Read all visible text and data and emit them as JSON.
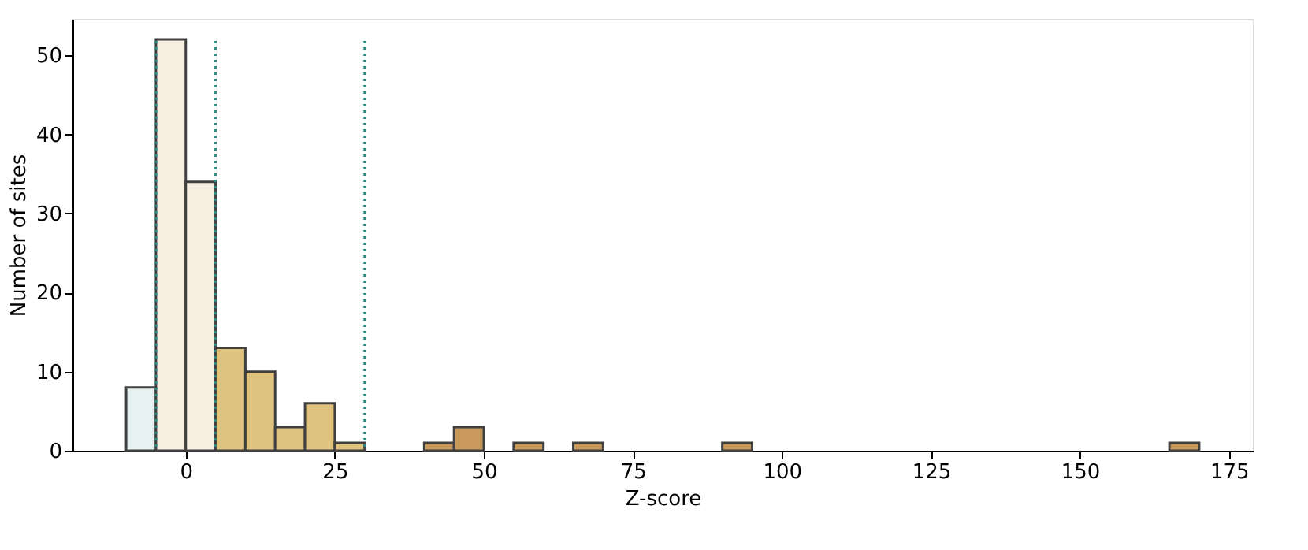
{
  "chart_data": {
    "type": "histogram",
    "xlabel": "Z-score",
    "ylabel": "Number of sites",
    "bins": [
      -10,
      -5,
      0,
      5,
      10,
      15,
      20,
      25,
      30,
      35,
      40,
      45,
      50,
      55,
      60,
      65,
      70,
      75,
      80,
      85,
      90,
      95,
      100,
      105,
      110,
      115,
      120,
      125,
      130,
      135,
      140,
      145,
      150,
      155,
      160,
      165,
      170
    ],
    "values": [
      8,
      52,
      34,
      13,
      10,
      3,
      6,
      1,
      0,
      0,
      1,
      3,
      0,
      1,
      0,
      1,
      0,
      0,
      0,
      0,
      1,
      0,
      0,
      0,
      0,
      0,
      0,
      0,
      0,
      0,
      0,
      0,
      0,
      0,
      0,
      1
    ],
    "colors": [
      "#e5f2ef",
      "#f6efe2",
      "#f6efe2",
      "#dfc27d",
      "#dfc27d",
      "#dfc27d",
      "#dfc27d",
      "#dfc27d",
      "#c8995a",
      "#c8995a",
      "#c8995a",
      "#c8995a",
      "#c8995a",
      "#c8995a",
      "#c8995a",
      "#c8995a",
      "#c8995a",
      "#c8995a",
      "#c8995a",
      "#c8995a",
      "#c8995a",
      "#c8995a",
      "#c8995a",
      "#c8995a",
      "#c8995a",
      "#c8995a",
      "#c8995a",
      "#c8995a",
      "#c8995a",
      "#c8995a",
      "#c8995a",
      "#c8995a",
      "#c8995a",
      "#c8995a",
      "#c8995a",
      "#c8995a"
    ],
    "xlim": [
      -19,
      179
    ],
    "xticks": [
      0,
      25,
      50,
      75,
      100,
      125,
      150,
      175
    ],
    "ylim": [
      0,
      54.6
    ],
    "yticks": [
      0,
      10,
      20,
      30,
      40,
      50
    ],
    "ref_lines": [
      {
        "axis": "x",
        "value": -5,
        "color": "#2a8a84",
        "line_style": "dotted"
      },
      {
        "axis": "x",
        "value": 5,
        "color": "#2a8a84",
        "line_style": "dotted"
      },
      {
        "axis": "x",
        "value": 30,
        "color": "#2a8a84",
        "line_style": "dotted"
      }
    ],
    "grid": false
  }
}
